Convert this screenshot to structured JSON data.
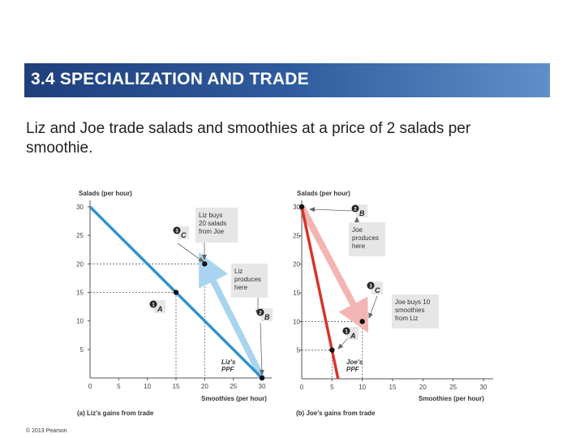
{
  "slide": {
    "title": "3.4  SPECIALIZATION AND TRADE",
    "subtitle": "Liz and Joe trade salads and smoothies at a price of 2 salads per smoothie.",
    "copyright": "© 2013 Pearson"
  },
  "colors": {
    "title_bar": "#2f5b9e",
    "liz_ppf": "#2f93cf",
    "liz_trade_arrow": "#a9d4ef",
    "joe_ppf": "#d8352a",
    "joe_trade_arrow": "#f2b5b2",
    "label_box": "#e6e6e6",
    "dashed": "#555555"
  },
  "chart_data": [
    {
      "type": "line",
      "panel": "left",
      "caption": "(a) Liz's gains from trade",
      "ylabel": "Salads (per hour)",
      "xlabel": "Smoothies (per hour)",
      "xlim": [
        0,
        30
      ],
      "ylim": [
        0,
        30
      ],
      "xticks": [
        0,
        5,
        10,
        15,
        20,
        25,
        30
      ],
      "yticks": [
        5,
        10,
        15,
        20,
        25,
        30
      ],
      "series": [
        {
          "name": "Liz's PPF",
          "label": "Liz's\nPPF",
          "points": [
            [
              0,
              30
            ],
            [
              30,
              0
            ]
          ]
        }
      ],
      "trade_arrow": {
        "from": [
          30,
          0
        ],
        "to": [
          20,
          20
        ]
      },
      "points": [
        {
          "id": "A",
          "number": "1",
          "x": 15,
          "y": 15
        },
        {
          "id": "B",
          "number": "2",
          "x": 30,
          "y": 0
        },
        {
          "id": "C",
          "number": "3",
          "x": 20,
          "y": 20
        }
      ],
      "annotations": [
        "Liz buys\n20 salads\nfrom Joe",
        "Liz\nproduces\nhere"
      ]
    },
    {
      "type": "line",
      "panel": "right",
      "caption": "(b) Joe's gains from trade",
      "ylabel": "Salads (per hour)",
      "xlabel": "Smoothies (per hour)",
      "xlim": [
        0,
        30
      ],
      "ylim": [
        0,
        30
      ],
      "xticks": [
        0,
        5,
        10,
        15,
        20,
        25,
        30
      ],
      "yticks": [
        5,
        10,
        15,
        20,
        25,
        30
      ],
      "series": [
        {
          "name": "Joe's PPF",
          "label": "Joe's\nPPF",
          "points": [
            [
              0,
              30
            ],
            [
              6,
              0
            ]
          ]
        }
      ],
      "trade_arrow": {
        "from": [
          0,
          30
        ],
        "to": [
          10,
          10
        ]
      },
      "points": [
        {
          "id": "A",
          "number": "1",
          "x": 5,
          "y": 5
        },
        {
          "id": "B",
          "number": "2",
          "x": 0,
          "y": 30
        },
        {
          "id": "C",
          "number": "3",
          "x": 10,
          "y": 10
        }
      ],
      "annotations": [
        "Joe\nproduces\nhere",
        "Joe buys 10\nsmoothies\nfrom Liz"
      ]
    }
  ]
}
